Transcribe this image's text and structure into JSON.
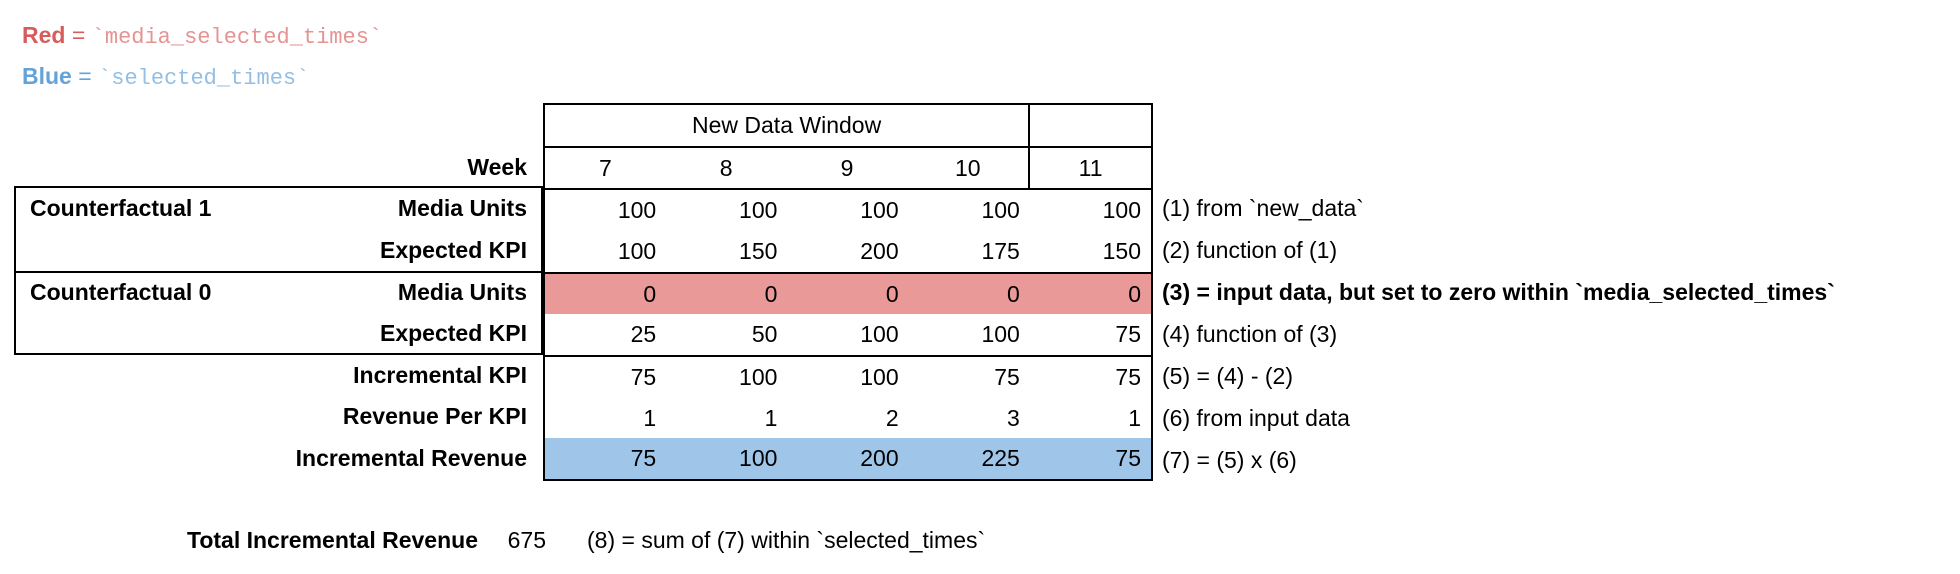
{
  "legend": {
    "red": {
      "label": "Red",
      "eq": "=",
      "code": "`media_selected_times`"
    },
    "blue": {
      "label": "Blue",
      "eq": "=",
      "code": "`selected_times`"
    }
  },
  "colors": {
    "red_text": "#d95c5c",
    "red_code_text": "#e59393",
    "blue_text": "#64a2d8",
    "blue_code_text": "#94bfe4",
    "red_highlight": "#ea9999",
    "blue_highlight": "#9fc5e8"
  },
  "table": {
    "window_title": "New Data Window",
    "week_label": "Week",
    "weeks": [
      "7",
      "8",
      "9",
      "10",
      "11"
    ],
    "groups": [
      {
        "label": "Counterfactual 1"
      },
      {
        "label": "Counterfactual 0"
      }
    ],
    "rows": [
      {
        "label": "Media Units",
        "values": [
          "100",
          "100",
          "100",
          "100",
          "100"
        ],
        "highlight": "none",
        "note": "(1) from `new_data`"
      },
      {
        "label": "Expected KPI",
        "values": [
          "100",
          "150",
          "200",
          "175",
          "150"
        ],
        "highlight": "none",
        "note": "(2) function of (1)"
      },
      {
        "label": "Media Units",
        "values": [
          "0",
          "0",
          "0",
          "0",
          "0"
        ],
        "highlight": "red",
        "note": "(3) = input data, but set to zero within `media_selected_times`"
      },
      {
        "label": "Expected KPI",
        "values": [
          "25",
          "50",
          "100",
          "100",
          "75"
        ],
        "highlight": "none",
        "note": "(4) function of (3)"
      },
      {
        "label": "Incremental KPI",
        "values": [
          "75",
          "100",
          "100",
          "75",
          "75"
        ],
        "highlight": "none",
        "note": "(5) = (4) - (2)"
      },
      {
        "label": "Revenue Per KPI",
        "values": [
          "1",
          "1",
          "2",
          "3",
          "1"
        ],
        "highlight": "none",
        "note": "(6) from input data"
      },
      {
        "label": "Incremental Revenue",
        "values": [
          "75",
          "100",
          "200",
          "225",
          "75"
        ],
        "highlight": "blue",
        "note": "(7) = (5) x (6)"
      }
    ]
  },
  "total": {
    "label": "Total Incremental Revenue",
    "value": "675",
    "note": "(8) = sum of (7) within `selected_times`"
  }
}
